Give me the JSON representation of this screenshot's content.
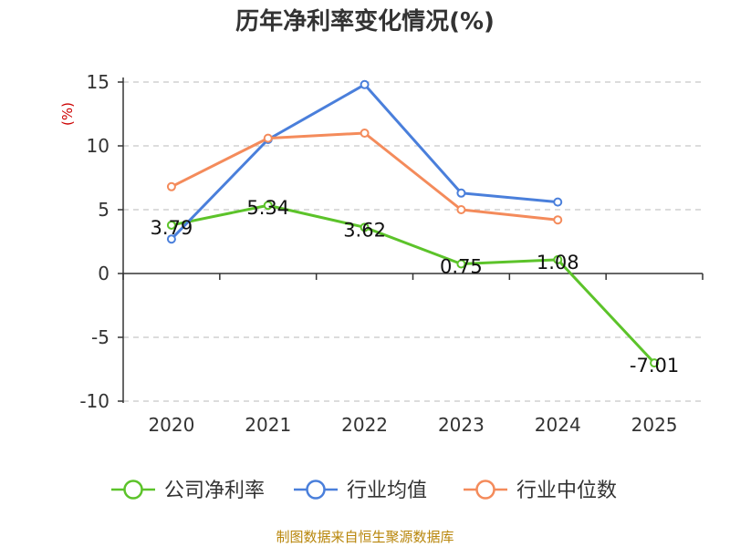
{
  "chart_data": {
    "type": "line",
    "title": "历年净利率变化情况(%)",
    "ylabel": "(%)",
    "categories": [
      "2020",
      "2021",
      "2022",
      "2023",
      "2024",
      "2025"
    ],
    "ylim": [
      -10,
      15
    ],
    "yticks": [
      15,
      10,
      5,
      0,
      -5,
      -10
    ],
    "grid": true,
    "legend_position": "bottom",
    "series": [
      {
        "name": "公司净利率",
        "color": "#5cc32a",
        "values": [
          3.79,
          5.34,
          3.62,
          0.75,
          1.08,
          -7.01
        ],
        "labels": [
          "3.79",
          "5.34",
          "3.62",
          "0.75",
          "1.08",
          "-7.01"
        ]
      },
      {
        "name": "行业均值",
        "color": "#4a7fdb",
        "values": [
          2.7,
          10.5,
          14.8,
          6.3,
          5.6,
          null
        ]
      },
      {
        "name": "行业中位数",
        "color": "#f48b5b",
        "values": [
          6.8,
          10.6,
          11.0,
          5.0,
          4.2,
          null
        ]
      }
    ]
  },
  "source": "制图数据来自恒生聚源数据库"
}
